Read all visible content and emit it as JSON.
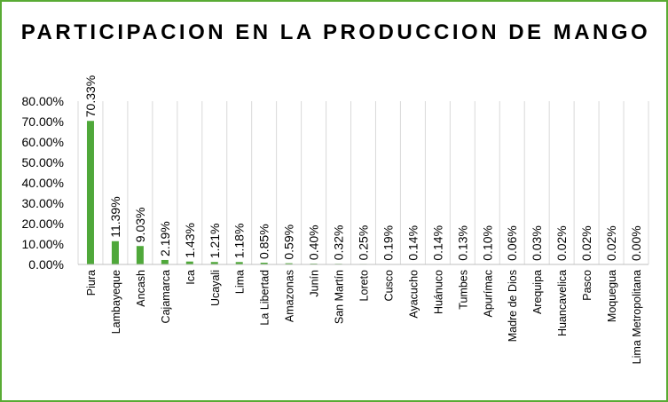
{
  "chart_data": {
    "type": "bar",
    "title": "PARTICIPACION EN LA PRODUCCION DE MANGO",
    "xlabel": "",
    "ylabel": "",
    "ylim": [
      0,
      0.8
    ],
    "y_ticks": [
      "0.00%",
      "10.00%",
      "20.00%",
      "30.00%",
      "40.00%",
      "50.00%",
      "60.00%",
      "70.00%",
      "80.00%"
    ],
    "grid": "vertical",
    "bar_color": "#4fa83a",
    "categories": [
      "Piura",
      "Lambayeque",
      "Ancash",
      "Cajamarca",
      "Ica",
      "Ucayali",
      "Lima",
      "La Libertad",
      "Amazonas",
      "Junín",
      "San Martín",
      "Loreto",
      "Cusco",
      "Ayacucho",
      "Huánuco",
      "Tumbes",
      "Apurímac",
      "Madre de Dios",
      "Arequipa",
      "Huancavelica",
      "Pasco",
      "Moquegua",
      "Lima Metropolitana"
    ],
    "values": [
      0.7033,
      0.1139,
      0.0903,
      0.0219,
      0.0143,
      0.0121,
      0.0118,
      0.0085,
      0.0059,
      0.004,
      0.0032,
      0.0025,
      0.0019,
      0.0014,
      0.0014,
      0.0013,
      0.001,
      0.0006,
      0.0003,
      0.0002,
      0.0002,
      0.0002,
      0.0
    ],
    "data_labels": [
      "70.33%",
      "11.39%",
      "9.03%",
      "2.19%",
      "1.43%",
      "1.21%",
      "1.18%",
      "0.85%",
      "0.59%",
      "0.40%",
      "0.32%",
      "0.25%",
      "0.19%",
      "0.14%",
      "0.14%",
      "0.13%",
      "0.10%",
      "0.06%",
      "0.03%",
      "0.02%",
      "0.02%",
      "0.02%",
      "0.00%"
    ]
  }
}
